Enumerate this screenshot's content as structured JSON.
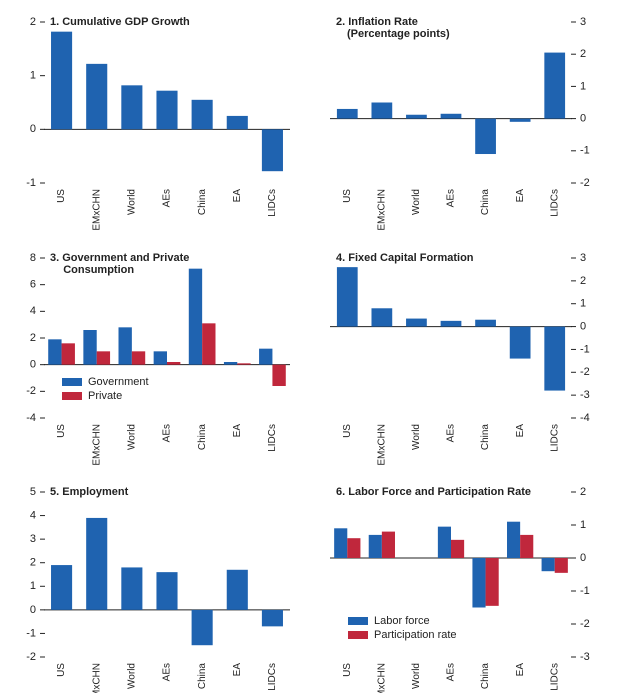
{
  "chart_data": [
    {
      "type": "bar",
      "title": "1. Cumulative GDP Growth",
      "y_axis_position": "left",
      "categories": [
        "US",
        "EMxCHN",
        "World",
        "AEs",
        "China",
        "EA",
        "LIDCs"
      ],
      "values": [
        1.82,
        1.22,
        0.82,
        0.72,
        0.55,
        0.25,
        -0.78
      ],
      "color": "#1f63b0",
      "ylim": [
        -1,
        2
      ],
      "yticks": [
        -1,
        0,
        1,
        2
      ]
    },
    {
      "type": "bar",
      "title": "2. Inflation Rate",
      "subtitle": "(Percentage points)",
      "y_axis_position": "right",
      "categories": [
        "US",
        "EMxCHN",
        "World",
        "AEs",
        "China",
        "EA",
        "LIDCs"
      ],
      "values": [
        0.3,
        0.5,
        0.12,
        0.15,
        -1.1,
        -0.1,
        2.05
      ],
      "color": "#1f63b0",
      "ylim": [
        -2,
        3
      ],
      "yticks": [
        -2,
        -1,
        0,
        1,
        2,
        3
      ]
    },
    {
      "type": "bar",
      "title": "3. Government and Private Consumption",
      "y_axis_position": "left",
      "legend": "lower left",
      "categories": [
        "US",
        "EMxCHN",
        "World",
        "AEs",
        "China",
        "EA",
        "LIDCs"
      ],
      "series": [
        {
          "name": "Government",
          "color": "#1f63b0",
          "values": [
            1.9,
            2.6,
            2.8,
            1.0,
            7.2,
            0.2,
            1.2
          ]
        },
        {
          "name": "Private",
          "color": "#c0273c",
          "values": [
            1.6,
            1.0,
            1.0,
            0.2,
            3.1,
            0.1,
            -1.6
          ]
        }
      ],
      "ylim": [
        -4,
        8
      ],
      "yticks": [
        -4,
        -2,
        0,
        2,
        4,
        6,
        8
      ]
    },
    {
      "type": "bar",
      "title": "4. Fixed Capital Formation",
      "y_axis_position": "right",
      "categories": [
        "US",
        "EMxCHN",
        "World",
        "AEs",
        "China",
        "EA",
        "LIDCs"
      ],
      "values": [
        2.6,
        0.8,
        0.35,
        0.25,
        0.3,
        -1.4,
        -2.8
      ],
      "color": "#1f63b0",
      "ylim": [
        -4,
        3
      ],
      "yticks": [
        -4,
        -3,
        -2,
        -1,
        0,
        1,
        2,
        3
      ]
    },
    {
      "type": "bar",
      "title": "5. Employment",
      "y_axis_position": "left",
      "categories": [
        "US",
        "EMxCHN",
        "World",
        "AEs",
        "China",
        "EA",
        "LIDCs"
      ],
      "values": [
        1.9,
        3.9,
        1.8,
        1.6,
        -1.5,
        1.7,
        -0.7
      ],
      "color": "#1f63b0",
      "ylim": [
        -2,
        5
      ],
      "yticks": [
        -2,
        -1,
        0,
        1,
        2,
        3,
        4,
        5
      ]
    },
    {
      "type": "bar",
      "title": "6. Labor Force and Participation Rate",
      "y_axis_position": "right",
      "legend": "lower left",
      "categories": [
        "US",
        "EMxCHN",
        "World",
        "AEs",
        "China",
        "EA",
        "LIDCs"
      ],
      "series": [
        {
          "name": "Labor force",
          "color": "#1f63b0",
          "values": [
            0.9,
            0.7,
            null,
            0.95,
            -1.5,
            1.1,
            -0.4
          ]
        },
        {
          "name": "Participation rate",
          "color": "#c0273c",
          "values": [
            0.6,
            0.8,
            null,
            0.55,
            -1.45,
            0.7,
            -0.45
          ]
        }
      ],
      "ylim": [
        -3,
        2
      ],
      "yticks": [
        -3,
        -2,
        -1,
        0,
        1,
        2
      ]
    }
  ]
}
